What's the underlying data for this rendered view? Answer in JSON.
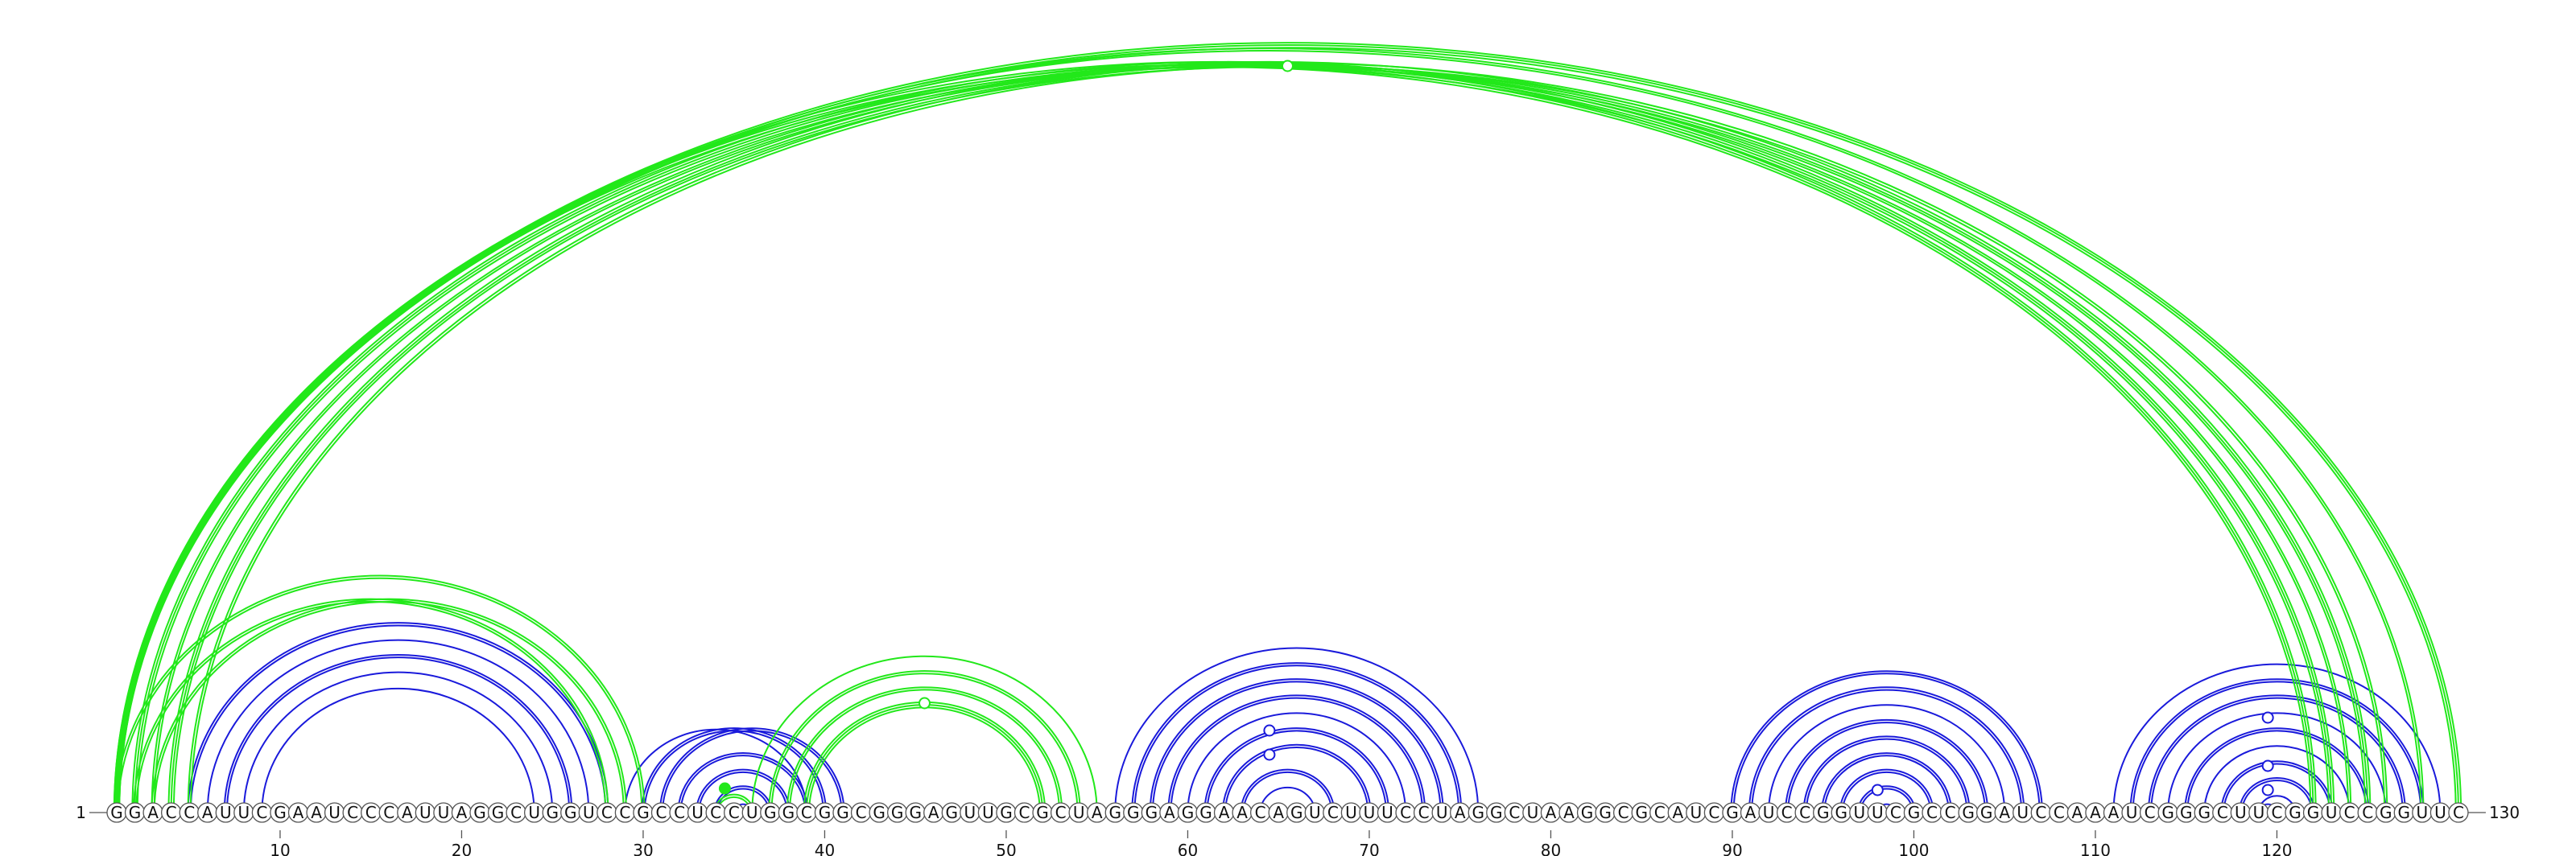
{
  "sequence": "GGACCAUUCGAAUCCCAUUAGGCUGGUCCGCCUCCUGGCGGCGGGAGUUGCGCUAGGGAGGAACAGUCUUUCCUAGGCUAAGGCGCAUCGAUCCGGUUCGCCGGAUCCAAAUCGGGCUUCGGUCCGGUUC",
  "start_label": "1",
  "end_label": "130",
  "tick_labels": [
    "10",
    "20",
    "30",
    "40",
    "50",
    "60",
    "70",
    "80",
    "90",
    "100",
    "110",
    "120"
  ],
  "colors": {
    "blue_arcs": "#1a1adb",
    "green_arcs": "#22e81a"
  },
  "arcs": {
    "blue": [
      [
        5,
        28,
        2
      ],
      [
        6,
        27,
        1
      ],
      [
        7,
        26,
        2
      ],
      [
        8,
        25,
        1
      ],
      [
        9,
        24,
        1
      ],
      [
        29,
        39,
        1
      ],
      [
        30,
        40,
        2
      ],
      [
        31,
        41,
        2
      ],
      [
        32,
        39,
        2
      ],
      [
        33,
        38,
        2
      ],
      [
        34,
        37,
        2
      ],
      [
        35,
        36,
        1
      ],
      [
        56,
        76,
        1
      ],
      [
        57,
        75,
        2
      ],
      [
        58,
        74,
        2
      ],
      [
        59,
        73,
        2
      ],
      [
        60,
        72,
        1
      ],
      [
        61,
        71,
        2
      ],
      [
        62,
        70,
        2
      ],
      [
        63,
        68,
        2
      ],
      [
        64,
        67,
        1
      ],
      [
        90,
        107,
        2
      ],
      [
        91,
        106,
        2
      ],
      [
        92,
        105,
        1
      ],
      [
        93,
        104,
        2
      ],
      [
        94,
        103,
        2
      ],
      [
        95,
        102,
        2
      ],
      [
        96,
        101,
        2
      ],
      [
        97,
        100,
        2
      ],
      [
        98,
        99,
        1
      ],
      [
        111,
        129,
        1
      ],
      [
        112,
        128,
        2
      ],
      [
        113,
        127,
        2
      ],
      [
        114,
        126,
        1
      ],
      [
        115,
        125,
        2
      ],
      [
        116,
        124,
        1
      ],
      [
        117,
        123,
        2
      ],
      [
        118,
        122,
        2
      ],
      [
        119,
        121,
        1
      ],
      [
        119,
        120,
        1
      ]
    ],
    "green": [
      [
        1,
        122,
        3
      ],
      [
        2,
        123,
        3
      ],
      [
        3,
        124,
        2
      ],
      [
        4,
        125,
        3
      ],
      [
        5,
        126,
        2
      ],
      [
        1,
        128,
        2
      ],
      [
        1,
        130,
        3
      ],
      [
        1,
        30,
        2
      ],
      [
        2,
        28,
        2
      ],
      [
        3,
        29,
        2
      ],
      [
        36,
        55,
        1
      ],
      [
        37,
        54,
        2
      ],
      [
        38,
        53,
        2
      ],
      [
        39,
        52,
        3
      ],
      [
        34,
        36,
        2
      ]
    ]
  },
  "markers": [
    {
      "pos": 65.5,
      "h": 34,
      "color": "green",
      "filled": false
    },
    {
      "pos": 45.5,
      "h": 34,
      "color": "green",
      "filled": false
    },
    {
      "pos": 34.5,
      "h": 7,
      "color": "green",
      "filled": true
    },
    {
      "pos": 64.5,
      "h": 10,
      "color": "blue",
      "filled": false
    },
    {
      "pos": 64.5,
      "h": 22,
      "color": "blue",
      "filled": false
    },
    {
      "pos": 98.0,
      "h": 5,
      "color": "blue",
      "filled": false
    },
    {
      "pos": 119.5,
      "h": 5,
      "color": "blue",
      "filled": false
    },
    {
      "pos": 119.5,
      "h": 18,
      "color": "blue",
      "filled": false
    },
    {
      "pos": 119.5,
      "h": 33,
      "color": "blue",
      "filled": false
    }
  ]
}
